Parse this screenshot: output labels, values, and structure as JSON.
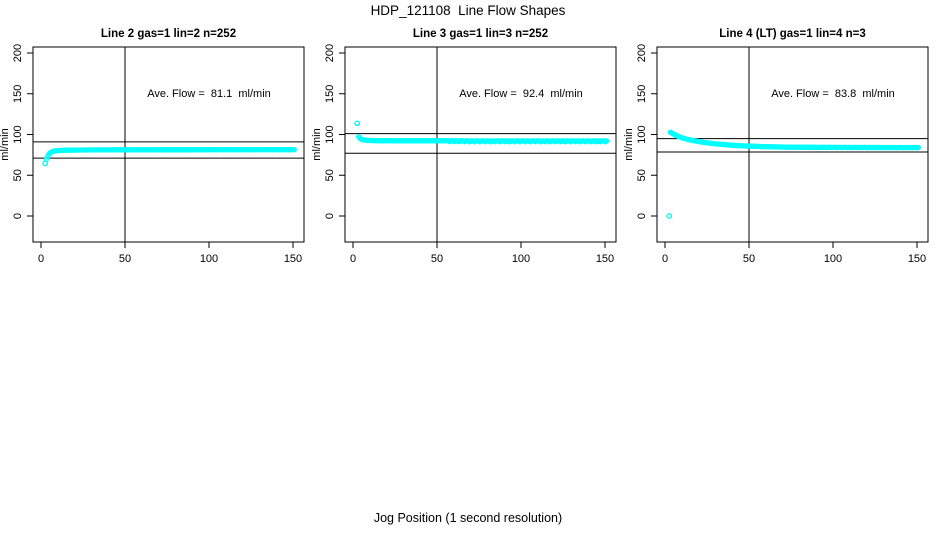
{
  "page": {
    "title": "HDP_121108  Line Flow Shapes",
    "x_axis_label": "Jog Position (1 second resolution)",
    "colors": {
      "point": "#00ffff",
      "axis": "#000000",
      "background": "#ffffff"
    }
  },
  "chart_data": [
    {
      "type": "scatter",
      "title": "Line 2 gas=1 lin=2 n=252",
      "ylabel": "ml/min",
      "xlabel": "",
      "annotation": "Ave. Flow =  81.1  ml/min",
      "ave_flow_ml_min": 81.1,
      "xlim": [
        0,
        150
      ],
      "ylim": [
        0,
        200
      ],
      "x_ticks": [
        0,
        50,
        100,
        150
      ],
      "y_ticks": [
        0,
        50,
        100,
        150,
        200
      ],
      "vline_x": 50,
      "hlines": [
        91,
        71
      ],
      "grid": false,
      "band": [
        [
          3.2,
          69.5
        ],
        [
          3.8,
          72.5
        ],
        [
          4.4,
          75
        ],
        [
          5,
          76.8
        ],
        [
          6,
          78.3
        ],
        [
          7,
          79.2
        ],
        [
          8,
          79.8
        ],
        [
          10,
          80.3
        ],
        [
          14,
          80.7
        ],
        [
          20,
          80.9
        ],
        [
          30,
          81.1
        ],
        [
          50,
          81.2
        ],
        [
          90,
          81.4
        ],
        [
          151,
          81.5
        ]
      ],
      "outliers": [
        [
          2.5,
          64.5
        ]
      ],
      "point_step": 0.6,
      "noise": 0.2
    },
    {
      "type": "scatter",
      "title": "Line 3 gas=1 lin=3 n=252",
      "ylabel": "ml/min",
      "xlabel": "",
      "annotation": "Ave. Flow =  92.4  ml/min",
      "ave_flow_ml_min": 92.4,
      "xlim": [
        0,
        150
      ],
      "ylim": [
        0,
        200
      ],
      "x_ticks": [
        0,
        50,
        100,
        150
      ],
      "y_ticks": [
        0,
        50,
        100,
        150,
        200
      ],
      "vline_x": 50,
      "hlines": [
        101,
        77
      ],
      "grid": false,
      "band": [
        [
          3.4,
          97.2
        ],
        [
          4,
          95.6
        ],
        [
          4.8,
          94.4
        ],
        [
          6,
          93.5
        ],
        [
          8,
          92.9
        ],
        [
          11,
          92.6
        ],
        [
          16,
          92.4
        ],
        [
          25,
          92.3
        ],
        [
          40,
          92.3
        ],
        [
          70,
          92.2
        ],
        [
          110,
          92.2
        ],
        [
          151,
          92.1
        ]
      ],
      "outliers": [
        [
          2.5,
          113.8
        ]
      ],
      "point_step": 0.6,
      "noise": 1.1
    },
    {
      "type": "scatter",
      "title": "Line 4 (LT) gas=1 lin=4 n=3",
      "ylabel": "ml/min",
      "xlabel": "",
      "annotation": "Ave. Flow =  83.8  ml/min",
      "ave_flow_ml_min": 83.8,
      "xlim": [
        0,
        150
      ],
      "ylim": [
        0,
        200
      ],
      "x_ticks": [
        0,
        50,
        100,
        150
      ],
      "y_ticks": [
        0,
        50,
        100,
        150,
        200
      ],
      "vline_x": 50,
      "hlines": [
        95,
        78.5
      ],
      "grid": false,
      "band": [
        [
          3.2,
          102.8
        ],
        [
          4,
          101.8
        ],
        [
          5,
          100.6
        ],
        [
          6.5,
          99
        ],
        [
          8,
          97.6
        ],
        [
          10,
          96
        ],
        [
          12,
          94.8
        ],
        [
          15,
          93.3
        ],
        [
          18,
          92.1
        ],
        [
          21,
          91
        ],
        [
          25,
          89.8
        ],
        [
          29,
          88.8
        ],
        [
          34,
          87.8
        ],
        [
          39,
          87
        ],
        [
          45,
          86.2
        ],
        [
          52,
          85.6
        ],
        [
          60,
          85.1
        ],
        [
          70,
          84.7
        ],
        [
          85,
          84.4
        ],
        [
          105,
          84.2
        ],
        [
          130,
          84.1
        ],
        [
          151,
          84.1
        ]
      ],
      "outliers": [
        [
          2.5,
          0
        ]
      ],
      "point_step": 0.6,
      "noise": 0.3
    }
  ]
}
